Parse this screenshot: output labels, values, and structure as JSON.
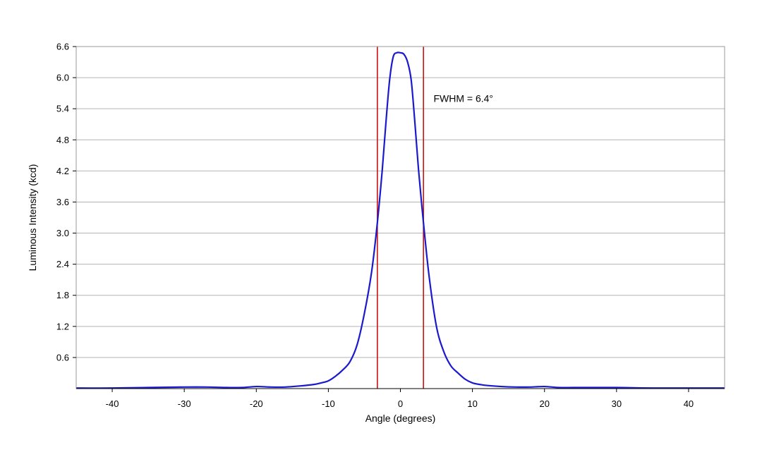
{
  "chart_data": {
    "type": "line",
    "xlabel": "Angle (degrees)",
    "ylabel": "Luminous Intensity (kcd)",
    "xlim": [
      -45,
      45
    ],
    "ylim": [
      0,
      6.6
    ],
    "x_ticks": [
      -40,
      -30,
      -20,
      -10,
      0,
      10,
      20,
      30,
      40
    ],
    "y_ticks": [
      0.6,
      1.2,
      1.8,
      2.4,
      3.0,
      3.6,
      4.2,
      4.8,
      5.4,
      6.0,
      6.6
    ],
    "y_tick_labels": [
      "0.6",
      "1.2",
      "1.8",
      "2.4",
      "3.0",
      "3.6",
      "4.2",
      "4.8",
      "5.4",
      "6.0",
      "6.6"
    ],
    "grid": true,
    "colors": {
      "series": "#1a1acc",
      "markers": "#cc1111",
      "grid": "#b4b4b4",
      "frame": "#9a9a9a"
    },
    "series": [
      {
        "x": [
          -45,
          -40,
          -35,
          -30,
          -27,
          -24,
          -22,
          -20,
          -18,
          -16,
          -14,
          -12,
          -11,
          -10,
          -9,
          -8,
          -7,
          -6,
          -5,
          -4,
          -3.2,
          -2.5,
          -2,
          -1.5,
          -1,
          -0.5,
          0,
          0.5,
          1,
          1.5,
          2,
          2.5,
          3.2,
          4,
          5,
          6,
          7,
          8,
          9,
          10,
          11,
          12,
          14,
          16,
          18,
          20,
          22,
          24,
          27,
          30,
          35,
          40,
          45
        ],
        "y": [
          0.01,
          0.01,
          0.02,
          0.03,
          0.03,
          0.02,
          0.02,
          0.04,
          0.03,
          0.03,
          0.05,
          0.08,
          0.11,
          0.15,
          0.24,
          0.36,
          0.52,
          0.85,
          1.45,
          2.25,
          3.2,
          4.25,
          5.15,
          5.95,
          6.4,
          6.48,
          6.48,
          6.45,
          6.3,
          5.95,
          5.15,
          4.25,
          3.2,
          2.15,
          1.2,
          0.72,
          0.44,
          0.3,
          0.18,
          0.11,
          0.08,
          0.06,
          0.04,
          0.03,
          0.03,
          0.04,
          0.02,
          0.02,
          0.02,
          0.02,
          0.01,
          0.01,
          0.01
        ]
      }
    ],
    "vertical_lines": [
      -3.2,
      3.2
    ],
    "annotations": [
      {
        "text": "FWHM = 6.4°",
        "x": 4.6,
        "y": 5.6
      }
    ]
  }
}
